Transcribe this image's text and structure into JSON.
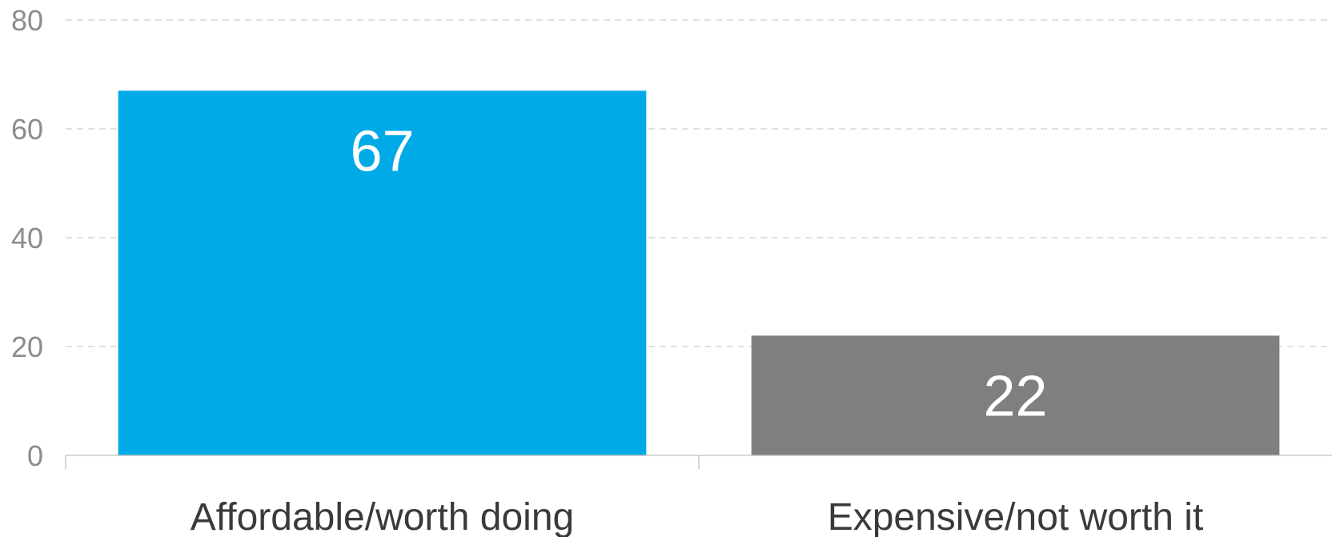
{
  "chart_data": {
    "type": "bar",
    "title": "",
    "xlabel": "",
    "ylabel": "",
    "ylim": [
      0,
      80
    ],
    "yticks": [
      0,
      20,
      40,
      60,
      80
    ],
    "grid": true,
    "categories": [
      "Affordable/worth doing",
      "Expensive/not worth it"
    ],
    "values": [
      67,
      22
    ],
    "data_labels": [
      "67",
      "22"
    ],
    "colors": [
      "#00aae7",
      "#7f7f7f"
    ]
  }
}
